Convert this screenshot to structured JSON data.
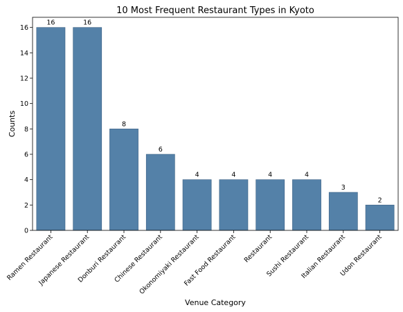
{
  "chart_data": {
    "type": "bar",
    "title": "10 Most Frequent Restaurant Types in Kyoto",
    "xlabel": "Venue Category",
    "ylabel": "Counts",
    "categories": [
      "Ramen Restaurant",
      "Japanese Restaurant",
      "Donburi Restaurant",
      "Chinese Restaurant",
      "Okonomiyaki Restaurant",
      "Fast Food Restaurant",
      "Restaurant",
      "Sushi Restaurant",
      "Italian Restaurant",
      "Udon Restaurant"
    ],
    "values": [
      16,
      16,
      8,
      6,
      4,
      4,
      4,
      4,
      3,
      2
    ],
    "ylim": [
      0,
      16.8
    ],
    "yticks": [
      0,
      2,
      4,
      6,
      8,
      10,
      12,
      14,
      16
    ],
    "bar_color": "#5481a8",
    "bar_edge_color": "#3d6284",
    "grid": false,
    "legend": "none",
    "data_labels": true
  }
}
